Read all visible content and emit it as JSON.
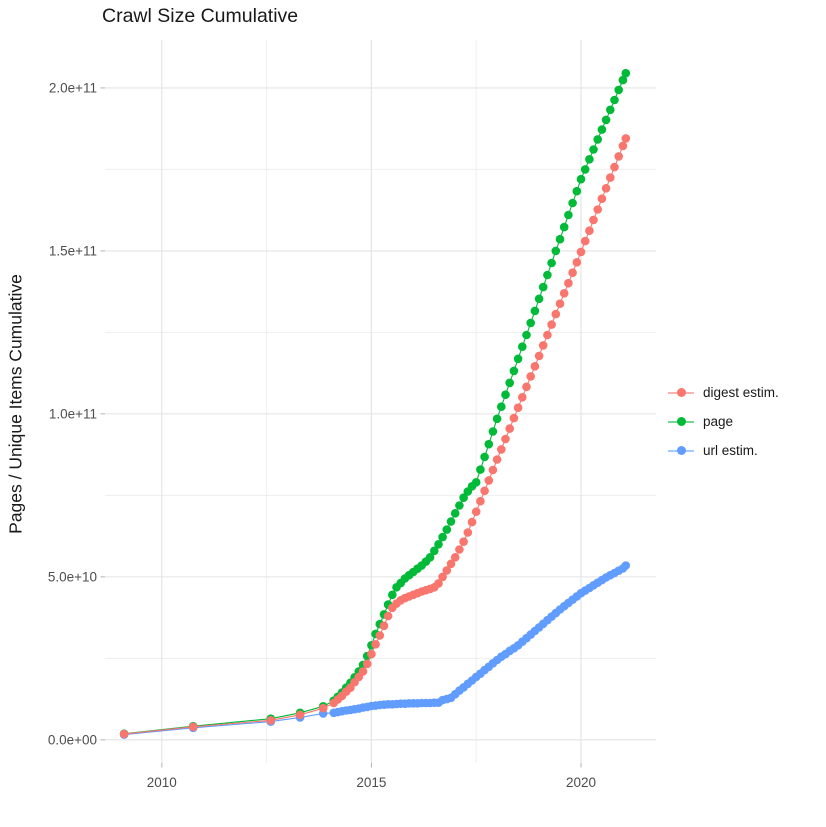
{
  "chart_data": {
    "type": "line",
    "title": "Crawl Size Cumulative",
    "xlabel": "",
    "ylabel": "Pages / Unique Items Cumulative",
    "legend_position": "right",
    "grid": true,
    "xlim": [
      2008.645,
      2021.79
    ],
    "ylim": [
      -7100000000.0,
      214700000000.0
    ],
    "x_ticks": {
      "values": [
        2010,
        2015,
        2020
      ],
      "labels": [
        "2010",
        "2015",
        "2020"
      ]
    },
    "x_minor": [
      2012.5,
      2017.5
    ],
    "y_ticks": {
      "values": [
        0,
        50000000000.0,
        100000000000.0,
        150000000000.0,
        200000000000.0
      ],
      "labels": [
        "0.0e+00",
        "5.0e+10",
        "1.0e+11",
        "1.5e+11",
        "2.0e+11"
      ]
    },
    "y_minor": [
      25000000000.0,
      75000000000.0,
      125000000000.0,
      175000000000.0
    ],
    "x": [
      2009.1,
      2010.75,
      2012.6,
      2013.3,
      2013.85,
      2014.1,
      2014.2,
      2014.3,
      2014.4,
      2014.5,
      2014.6,
      2014.7,
      2014.8,
      2014.9,
      2015.0,
      2015.1,
      2015.2,
      2015.3,
      2015.4,
      2015.5,
      2015.6,
      2015.7,
      2015.8,
      2015.9,
      2016.0,
      2016.1,
      2016.2,
      2016.3,
      2016.4,
      2016.5,
      2016.6,
      2016.7,
      2016.8,
      2016.9,
      2017.0,
      2017.1,
      2017.2,
      2017.3,
      2017.4,
      2017.5,
      2017.6,
      2017.7,
      2017.8,
      2017.9,
      2018.0,
      2018.1,
      2018.2,
      2018.3,
      2018.4,
      2018.5,
      2018.6,
      2018.7,
      2018.8,
      2018.9,
      2019.0,
      2019.1,
      2019.2,
      2019.3,
      2019.4,
      2019.5,
      2019.6,
      2019.7,
      2019.8,
      2019.9,
      2020.0,
      2020.1,
      2020.2,
      2020.3,
      2020.4,
      2020.5,
      2020.6,
      2020.7,
      2020.8,
      2020.9,
      2021.0,
      2021.07
    ],
    "series": [
      {
        "name": "digest estim.",
        "color": "#F8766D",
        "values": [
          1800000000.0,
          4000000000.0,
          6000000000.0,
          7700000000.0,
          9700000000.0,
          11300000000.0,
          12400000000.0,
          13500000000.0,
          14800000000.0,
          16000000000.0,
          17700000000.0,
          19300000000.0,
          21000000000.0,
          23300000000.0,
          26300000000.0,
          29300000000.0,
          32000000000.0,
          35000000000.0,
          38000000000.0,
          40500000000.0,
          41800000000.0,
          42800000000.0,
          43500000000.0,
          44000000000.0,
          44500000000.0,
          45000000000.0,
          45500000000.0,
          45900000000.0,
          46300000000.0,
          46800000000.0,
          48000000000.0,
          50000000000.0,
          52000000000.0,
          54000000000.0,
          56000000000.0,
          58400000000.0,
          60800000000.0,
          63600000000.0,
          66800000000.0,
          70000000000.0,
          73200000000.0,
          76400000000.0,
          79600000000.0,
          82800000000.0,
          86000000000.0,
          89100000000.0,
          92300000000.0,
          95500000000.0,
          98700000000.0,
          101900000000.0,
          105100000000.0,
          108300000000.0,
          111500000000.0,
          114600000000.0,
          117800000000.0,
          121000000000.0,
          124200000000.0,
          127400000000.0,
          130600000000.0,
          133800000000.0,
          137000000000.0,
          140100000000.0,
          143300000000.0,
          146500000000.0,
          149700000000.0,
          153000000000.0,
          156200000000.0,
          159500000000.0,
          162700000000.0,
          166000000000.0,
          169200000000.0,
          172500000000.0,
          175700000000.0,
          179000000000.0,
          182200000000.0,
          184500000000.0
        ]
      },
      {
        "name": "page",
        "color": "#00BA38",
        "values": [
          1900000000.0,
          4200000000.0,
          6500000000.0,
          8300000000.0,
          10300000000.0,
          12000000000.0,
          13200000000.0,
          14500000000.0,
          16000000000.0,
          17500000000.0,
          19200000000.0,
          21000000000.0,
          23000000000.0,
          25700000000.0,
          29000000000.0,
          32500000000.0,
          35500000000.0,
          38500000000.0,
          41500000000.0,
          44500000000.0,
          46800000000.0,
          48100000000.0,
          49500000000.0,
          50500000000.0,
          51500000000.0,
          52500000000.0,
          53500000000.0,
          54700000000.0,
          56000000000.0,
          58000000000.0,
          60000000000.0,
          62200000000.0,
          64500000000.0,
          67000000000.0,
          69500000000.0,
          71900000000.0,
          74300000000.0,
          76200000000.0,
          77800000000.0,
          79000000000.0,
          82900000000.0,
          86800000000.0,
          90700000000.0,
          94600000000.0,
          98500000000.0,
          102200000000.0,
          105900000000.0,
          109500000000.0,
          113200000000.0,
          116900000000.0,
          120600000000.0,
          124200000000.0,
          127900000000.0,
          131600000000.0,
          135300000000.0,
          138900000000.0,
          142600000000.0,
          146300000000.0,
          150000000000.0,
          153600000000.0,
          157300000000.0,
          161000000000.0,
          164700000000.0,
          168300000000.0,
          172000000000.0,
          175000000000.0,
          178100000000.0,
          181100000000.0,
          184200000000.0,
          187200000000.0,
          190200000000.0,
          193300000000.0,
          196300000000.0,
          199400000000.0,
          202400000000.0,
          204500000000.0
        ]
      },
      {
        "name": "url estim.",
        "color": "#619CFF",
        "values": [
          1600000000.0,
          3700000000.0,
          5600000000.0,
          6900000000.0,
          8100000000.0,
          8300000000.0,
          8500000000.0,
          8800000000.0,
          9000000000.0,
          9200000000.0,
          9400000000.0,
          9600000000.0,
          9900000000.0,
          10100000000.0,
          10400000000.0,
          10500000000.0,
          10700000000.0,
          10800000000.0,
          10900000000.0,
          10900000000.0,
          11000000000.0,
          11100000000.0,
          11100000000.0,
          11200000000.0,
          11200000000.0,
          11200000000.0,
          11300000000.0,
          11300000000.0,
          11300000000.0,
          11400000000.0,
          11400000000.0,
          12200000000.0,
          12500000000.0,
          12900000000.0,
          14000000000.0,
          15100000000.0,
          16100000000.0,
          17200000000.0,
          18200000000.0,
          19300000000.0,
          20300000000.0,
          21400000000.0,
          22400000000.0,
          23500000000.0,
          24500000000.0,
          25500000000.0,
          26300000000.0,
          27300000000.0,
          28100000000.0,
          29000000000.0,
          30100000000.0,
          31200000000.0,
          32300000000.0,
          33400000000.0,
          34500000000.0,
          35600000000.0,
          36700000000.0,
          37800000000.0,
          38900000000.0,
          40000000000.0,
          41000000000.0,
          42000000000.0,
          43000000000.0,
          44000000000.0,
          45000000000.0,
          45800000000.0,
          46600000000.0,
          47400000000.0,
          48200000000.0,
          49000000000.0,
          49800000000.0,
          50500000000.0,
          51200000000.0,
          51900000000.0,
          52600000000.0,
          53500000000.0
        ]
      }
    ],
    "style": {
      "grid_major_color": "#e3e3e3",
      "grid_minor_color": "#eeeeee",
      "tick_mark_color": "#b3b3b3",
      "tick_label_color": "#4d4d4d",
      "text_color": "#191919",
      "background": "#ffffff",
      "point_radius": 4.3
    }
  }
}
